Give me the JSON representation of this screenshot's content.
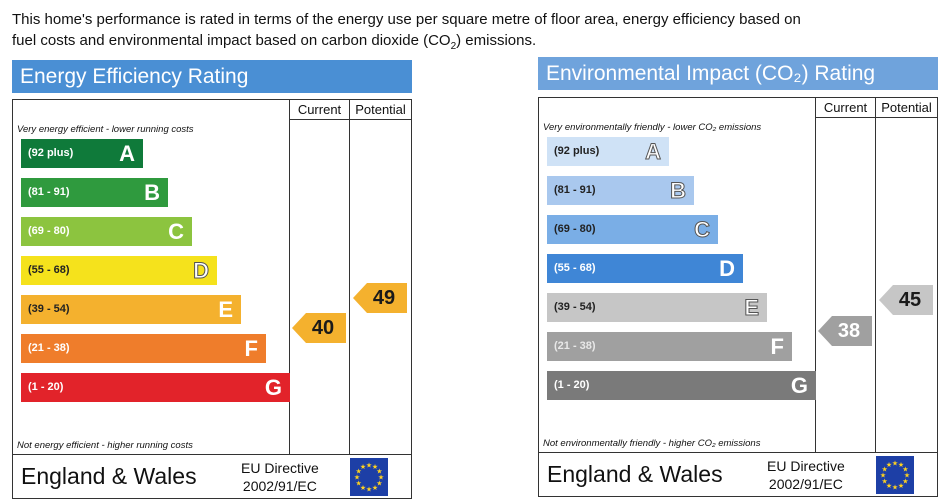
{
  "intro": {
    "line1": "This home's performance is rated in terms of the energy use per square metre of floor area, energy efficiency based on",
    "line2_prefix": "fuel costs and environmental impact based on carbon dioxide (CO",
    "line2_sub": "2",
    "line2_suffix": ") emissions."
  },
  "chart_data": [
    {
      "type": "bar",
      "title": "Energy Efficiency Rating",
      "column_headers": [
        "Current",
        "Potential"
      ],
      "top_note": "Very energy efficient - lower running costs",
      "bottom_note": "Not energy efficient - higher running costs",
      "bands": [
        {
          "range": "(92 plus)",
          "letter": "A",
          "color": "#0f7a3a"
        },
        {
          "range": "(81 - 91)",
          "letter": "B",
          "color": "#2f9a3e"
        },
        {
          "range": "(69 - 80)",
          "letter": "C",
          "color": "#8cc43f"
        },
        {
          "range": "(55 - 68)",
          "letter": "D",
          "color": "#f5e21c"
        },
        {
          "range": "(39 - 54)",
          "letter": "E",
          "color": "#f4b12e"
        },
        {
          "range": "(21 - 38)",
          "letter": "F",
          "color": "#ef7d2b"
        },
        {
          "range": "(1 - 20)",
          "letter": "G",
          "color": "#e2232a"
        }
      ],
      "current": {
        "value": 40,
        "band": "E",
        "color": "#f4b12e"
      },
      "potential": {
        "value": 49,
        "band": "E",
        "color": "#f4b12e"
      },
      "footer": {
        "region": "England & Wales",
        "directive_line1": "EU Directive",
        "directive_line2": "2002/91/EC"
      }
    },
    {
      "type": "bar",
      "title": "Environmental Impact (CO₂) Rating",
      "column_headers": [
        "Current",
        "Potential"
      ],
      "top_note": "Very environmentally friendly - lower CO₂ emissions",
      "bottom_note": "Not environmentally friendly - higher CO₂ emissions",
      "bands": [
        {
          "range": "(92 plus)",
          "letter": "A",
          "color": "#cfe2f6"
        },
        {
          "range": "(81 - 91)",
          "letter": "B",
          "color": "#a9c8ee"
        },
        {
          "range": "(69 - 80)",
          "letter": "C",
          "color": "#7aaee6"
        },
        {
          "range": "(55 - 68)",
          "letter": "D",
          "color": "#3f86d6"
        },
        {
          "range": "(39 - 54)",
          "letter": "E",
          "color": "#c6c6c6"
        },
        {
          "range": "(21 - 38)",
          "letter": "F",
          "color": "#a0a0a0"
        },
        {
          "range": "(1 - 20)",
          "letter": "G",
          "color": "#7a7a7a"
        }
      ],
      "current": {
        "value": 38,
        "band": "F",
        "color": "#a0a0a0"
      },
      "potential": {
        "value": 45,
        "band": "E",
        "color": "#c6c6c6"
      },
      "footer": {
        "region": "England & Wales",
        "directive_line1": "EU Directive",
        "directive_line2": "2002/91/EC"
      }
    }
  ]
}
